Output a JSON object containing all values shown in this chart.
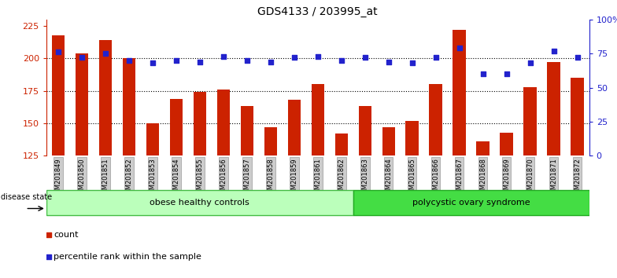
{
  "title": "GDS4133 / 203995_at",
  "samples": [
    "GSM201849",
    "GSM201850",
    "GSM201851",
    "GSM201852",
    "GSM201853",
    "GSM201854",
    "GSM201855",
    "GSM201856",
    "GSM201857",
    "GSM201858",
    "GSM201859",
    "GSM201861",
    "GSM201862",
    "GSM201863",
    "GSM201864",
    "GSM201865",
    "GSM201866",
    "GSM201867",
    "GSM201868",
    "GSM201869",
    "GSM201870",
    "GSM201871",
    "GSM201872"
  ],
  "bar_values": [
    218,
    204,
    214,
    200,
    150,
    169,
    174,
    176,
    163,
    147,
    168,
    180,
    142,
    163,
    147,
    152,
    180,
    222,
    136,
    143,
    178,
    197,
    185
  ],
  "dot_values": [
    76,
    72,
    75,
    70,
    68,
    70,
    69,
    73,
    70,
    69,
    72,
    73,
    70,
    72,
    69,
    68,
    72,
    79,
    60,
    60,
    68,
    77,
    72
  ],
  "ylim_left": [
    125,
    230
  ],
  "ylim_right": [
    0,
    100
  ],
  "yticks_left": [
    125,
    150,
    175,
    200,
    225
  ],
  "yticks_right": [
    0,
    25,
    50,
    75,
    100
  ],
  "ytick_labels_right": [
    "0",
    "25",
    "50",
    "75",
    "100%"
  ],
  "bar_color": "#CC2200",
  "dot_color": "#2222CC",
  "group1_label": "obese healthy controls",
  "group2_label": "polycystic ovary syndrome",
  "group1_count": 13,
  "group2_count": 10,
  "disease_state_label": "disease state",
  "legend_count_label": "count",
  "legend_pct_label": "percentile rank within the sample",
  "group1_color": "#BBFFBB",
  "group2_color": "#44DD44",
  "group1_edge": "#44BB44",
  "group2_edge": "#22AA22",
  "xtick_bg": "#CCCCCC",
  "xtick_edge": "#999999",
  "left_axis_color": "#CC2200",
  "right_axis_color": "#2222CC",
  "grid_color": "#000000",
  "title_fontsize": 10,
  "bar_width": 0.55
}
